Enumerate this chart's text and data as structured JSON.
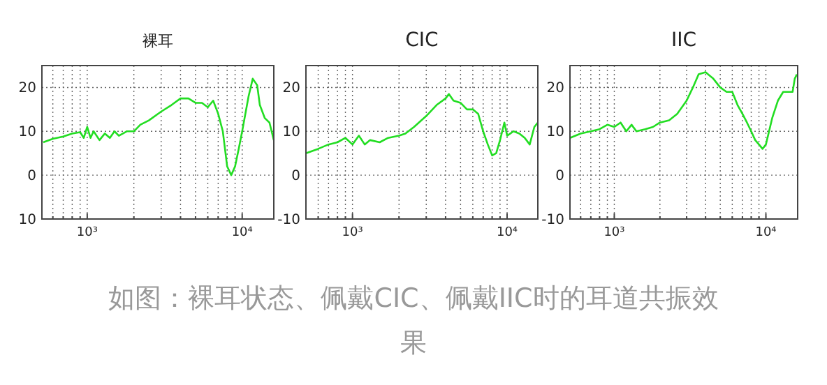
{
  "chart_data": [
    {
      "type": "line",
      "title": "裸耳",
      "log": "x",
      "grid": true,
      "xlim": [
        510,
        16000
      ],
      "ylim": [
        -10,
        25
      ],
      "xticks": [
        {
          "value": 600,
          "label": null
        },
        {
          "value": 700,
          "label": null
        },
        {
          "value": 800,
          "label": null
        },
        {
          "value": 900,
          "label": null
        },
        {
          "value": 1000,
          "label": "10³"
        },
        {
          "value": 2000,
          "label": null
        },
        {
          "value": 3000,
          "label": null
        },
        {
          "value": 4000,
          "label": null
        },
        {
          "value": 5000,
          "label": null
        },
        {
          "value": 6000,
          "label": null
        },
        {
          "value": 7000,
          "label": null
        },
        {
          "value": 8000,
          "label": null
        },
        {
          "value": 9000,
          "label": null
        },
        {
          "value": 10000,
          "label": "10⁴"
        }
      ],
      "yticks": [
        {
          "value": -10,
          "label": "10"
        },
        0,
        10,
        20
      ],
      "x": [
        520,
        600,
        700,
        800,
        900,
        950,
        1000,
        1050,
        1100,
        1200,
        1300,
        1400,
        1500,
        1600,
        1800,
        2000,
        2200,
        2500,
        3000,
        3500,
        4000,
        4500,
        5000,
        5500,
        6000,
        6500,
        7000,
        7500,
        8000,
        8500,
        9000,
        9500,
        10000,
        11000,
        11700,
        12500,
        13000,
        14000,
        15000,
        16000
      ],
      "series": [
        {
          "color": "#22dd22",
          "values": [
            7.5,
            8.3,
            8.8,
            9.5,
            9.8,
            8.5,
            11,
            8.5,
            10,
            8,
            9.5,
            8.5,
            10,
            9,
            10,
            10,
            11.5,
            12.5,
            14.5,
            16,
            17.5,
            17.5,
            16.5,
            16.5,
            15.5,
            17,
            14,
            10,
            2,
            0,
            2,
            6,
            10,
            18,
            22,
            20.5,
            16,
            13,
            12,
            8
          ]
        }
      ],
      "annotations": [
        "如图：裸耳状态、佩戴CIC、佩戴IIC时的耳道共振效果"
      ]
    },
    {
      "type": "line",
      "title": "CIC",
      "log": "x",
      "grid": true,
      "xlim": [
        500,
        15800
      ],
      "ylim": [
        -10,
        25
      ],
      "xticks": [
        {
          "value": 600,
          "label": null
        },
        {
          "value": 700,
          "label": null
        },
        {
          "value": 800,
          "label": null
        },
        {
          "value": 900,
          "label": null
        },
        {
          "value": 1000,
          "label": "10³"
        },
        {
          "value": 2000,
          "label": null
        },
        {
          "value": 3000,
          "label": null
        },
        {
          "value": 4000,
          "label": null
        },
        {
          "value": 5000,
          "label": null
        },
        {
          "value": 6000,
          "label": null
        },
        {
          "value": 7000,
          "label": null
        },
        {
          "value": 8000,
          "label": null
        },
        {
          "value": 9000,
          "label": null
        },
        {
          "value": 10000,
          "label": "10⁴"
        }
      ],
      "yticks": [
        -10,
        0,
        10,
        20
      ],
      "x": [
        500,
        600,
        700,
        800,
        900,
        1000,
        1100,
        1200,
        1300,
        1500,
        1700,
        2000,
        2200,
        2500,
        3000,
        3500,
        4000,
        4200,
        4500,
        5000,
        5500,
        6000,
        6500,
        7000,
        7500,
        8000,
        8500,
        9000,
        9600,
        10000,
        11000,
        12000,
        13000,
        14000,
        15000,
        15800
      ],
      "series": [
        {
          "color": "#22dd22",
          "values": [
            5,
            6,
            7,
            7.5,
            8.5,
            7,
            9,
            7,
            8,
            7.5,
            8.5,
            9,
            9.5,
            11,
            13.5,
            16,
            17.5,
            18.5,
            17,
            16.5,
            15,
            15,
            14,
            10,
            7,
            4.5,
            5,
            8,
            12,
            9,
            10,
            9.5,
            8.5,
            7,
            11,
            12
          ]
        }
      ]
    },
    {
      "type": "line",
      "title": "IIC",
      "log": "x",
      "grid": true,
      "xlim": [
        510,
        16200
      ],
      "ylim": [
        -10,
        25
      ],
      "xticks": [
        {
          "value": 600,
          "label": null
        },
        {
          "value": 700,
          "label": null
        },
        {
          "value": 800,
          "label": null
        },
        {
          "value": 900,
          "label": null
        },
        {
          "value": 1000,
          "label": "10³"
        },
        {
          "value": 2000,
          "label": null
        },
        {
          "value": 3000,
          "label": null
        },
        {
          "value": 4000,
          "label": null
        },
        {
          "value": 5000,
          "label": null
        },
        {
          "value": 6000,
          "label": null
        },
        {
          "value": 7000,
          "label": null
        },
        {
          "value": 8000,
          "label": null
        },
        {
          "value": 9000,
          "label": null
        },
        {
          "value": 10000,
          "label": "10⁴"
        }
      ],
      "yticks": [
        -10,
        0,
        10,
        20
      ],
      "x": [
        510,
        600,
        700,
        800,
        900,
        1000,
        1100,
        1200,
        1300,
        1400,
        1600,
        1800,
        2000,
        2300,
        2600,
        3000,
        3300,
        3600,
        4000,
        4500,
        5000,
        5500,
        6000,
        6500,
        7000,
        7500,
        8000,
        8500,
        9000,
        9500,
        10000,
        11000,
        12000,
        13000,
        14000,
        15000,
        15500,
        16000
      ],
      "series": [
        {
          "color": "#22dd22",
          "values": [
            8.5,
            9.5,
            10,
            10.5,
            11.5,
            11,
            12,
            10,
            11.5,
            10,
            10.5,
            11,
            12,
            12.5,
            14,
            17,
            20,
            23,
            23.5,
            22,
            20,
            19,
            19,
            16,
            14,
            12,
            10,
            8,
            7,
            6,
            7,
            13,
            17,
            19,
            19,
            19,
            22,
            23
          ]
        }
      ]
    }
  ]
}
